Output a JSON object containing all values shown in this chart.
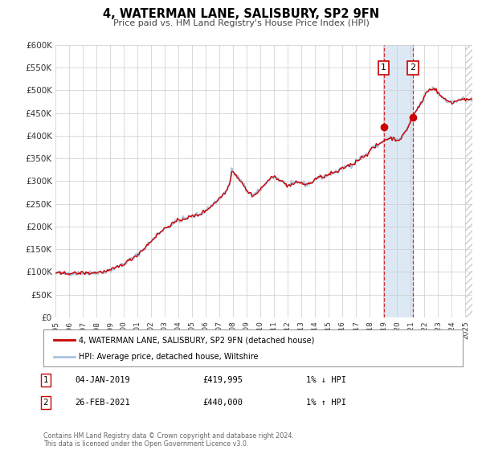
{
  "title": "4, WATERMAN LANE, SALISBURY, SP2 9FN",
  "subtitle": "Price paid vs. HM Land Registry's House Price Index (HPI)",
  "ylim": [
    0,
    600000
  ],
  "yticks": [
    0,
    50000,
    100000,
    150000,
    200000,
    250000,
    300000,
    350000,
    400000,
    450000,
    500000,
    550000,
    600000
  ],
  "ytick_labels": [
    "£0",
    "£50K",
    "£100K",
    "£150K",
    "£200K",
    "£250K",
    "£300K",
    "£350K",
    "£400K",
    "£450K",
    "£500K",
    "£550K",
    "£600K"
  ],
  "xlim_start": 1995.0,
  "xlim_end": 2025.5,
  "xticks": [
    1995,
    1996,
    1997,
    1998,
    1999,
    2000,
    2001,
    2002,
    2003,
    2004,
    2005,
    2006,
    2007,
    2008,
    2009,
    2010,
    2011,
    2012,
    2013,
    2014,
    2015,
    2016,
    2017,
    2018,
    2019,
    2020,
    2021,
    2022,
    2023,
    2024,
    2025
  ],
  "hpi_color": "#a8c4e0",
  "price_color": "#cc0000",
  "marker_color": "#cc0000",
  "vline_color": "#cc0000",
  "shade_color": "#dce9f5",
  "legend_label_price": "4, WATERMAN LANE, SALISBURY, SP2 9FN (detached house)",
  "legend_label_hpi": "HPI: Average price, detached house, Wiltshire",
  "point1_date": "04-JAN-2019",
  "point1_x": 2019.01,
  "point1_y": 419995,
  "point1_price": "£419,995",
  "point1_note": "1% ↓ HPI",
  "point2_date": "26-FEB-2021",
  "point2_x": 2021.16,
  "point2_y": 440000,
  "point2_price": "£440,000",
  "point2_note": "1% ↑ HPI",
  "footer": "Contains HM Land Registry data © Crown copyright and database right 2024.\nThis data is licensed under the Open Government Licence v3.0.",
  "background_color": "#ffffff",
  "plot_bg_color": "#ffffff",
  "grid_color": "#cccccc",
  "hatch_color": "#cccccc"
}
